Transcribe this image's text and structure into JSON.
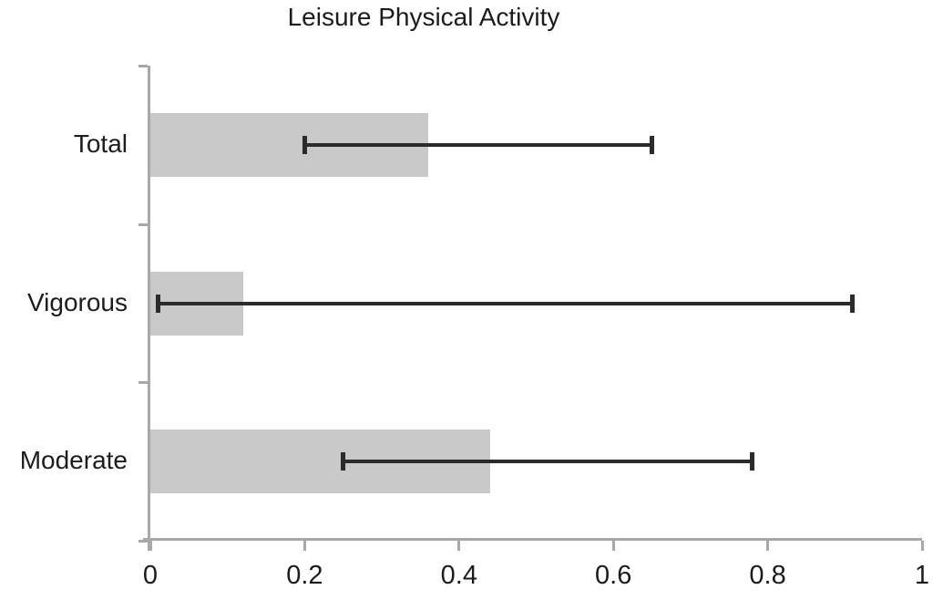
{
  "chart_data": {
    "type": "bar",
    "orientation": "horizontal",
    "title": "Leisure Physical Activity",
    "categories": [
      "Total",
      "Vigorous",
      "Moderate"
    ],
    "values": [
      0.36,
      0.12,
      0.44
    ],
    "error_bars": [
      {
        "low": 0.2,
        "high": 0.65
      },
      {
        "low": 0.01,
        "high": 0.91
      },
      {
        "low": 0.25,
        "high": 0.78
      }
    ],
    "xlabel": "",
    "ylabel": "",
    "xlim": [
      0,
      1
    ],
    "x_ticks": [
      0,
      0.2,
      0.4,
      0.6,
      0.8,
      1
    ],
    "x_tick_labels": [
      "0",
      "0.2",
      "0.4",
      "0.6",
      "0.8",
      "1"
    ],
    "grid": false,
    "legend": false,
    "colors": {
      "bar_fill": "#c9c9c9",
      "error_bar": "#2b2b2b",
      "axis": "#a8a8a8",
      "text": "#1c1c1c",
      "background": "#ffffff"
    }
  }
}
